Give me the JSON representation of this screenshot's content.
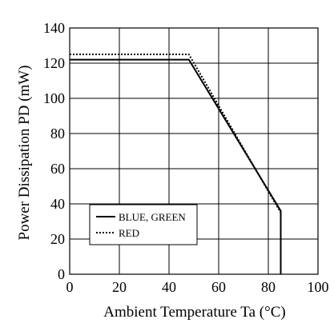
{
  "chart_data": {
    "type": "line",
    "title": "",
    "xlabel": "Ambient Temperature Ta (°C)",
    "ylabel": "Power Dissipation PD (mW)",
    "xlim": [
      0,
      100
    ],
    "ylim": [
      0,
      140
    ],
    "xticks": [
      0,
      20,
      40,
      60,
      80,
      100
    ],
    "yticks": [
      0,
      20,
      40,
      60,
      80,
      100,
      120,
      140
    ],
    "xtick_labels": [
      "0",
      "20",
      "40",
      "60",
      "80",
      "100"
    ],
    "ytick_labels": [
      "0",
      "20",
      "40",
      "60",
      "80",
      "100",
      "120",
      "140"
    ],
    "grid": true,
    "legend_position": "lower-left",
    "series": [
      {
        "name": "BLUE, GREEN",
        "style": "solid",
        "color": "#000000",
        "x": [
          0,
          48,
          85,
          85
        ],
        "y": [
          122,
          122,
          36,
          0
        ]
      },
      {
        "name": "RED",
        "style": "dotted",
        "color": "#000000",
        "x": [
          0,
          48,
          85,
          85
        ],
        "y": [
          125,
          125,
          35,
          0
        ]
      }
    ]
  }
}
